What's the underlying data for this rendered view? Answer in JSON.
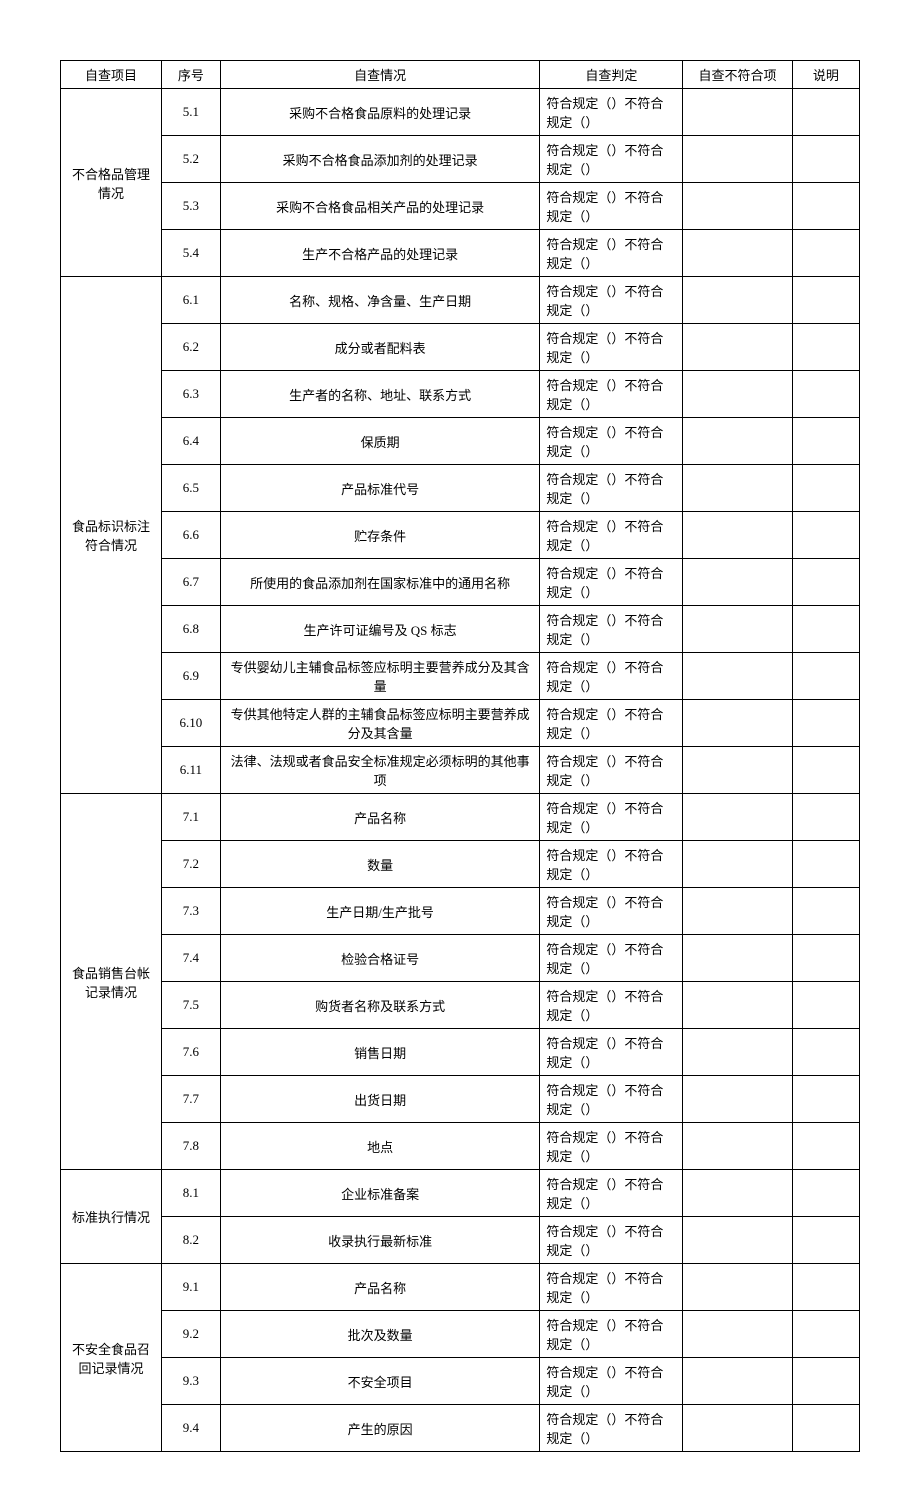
{
  "headers": {
    "project": "自查项目",
    "num": "序号",
    "desc": "自查情况",
    "judge": "自查判定",
    "nc": "自查不符合项",
    "note": "说明"
  },
  "judge_text": "符合规定（）不符合规定（）",
  "groups": [
    {
      "title": "不合格品管理情况",
      "rows": [
        {
          "num": "5.1",
          "desc": "采购不合格食品原料的处理记录"
        },
        {
          "num": "5.2",
          "desc": "采购不合格食品添加剂的处理记录"
        },
        {
          "num": "5.3",
          "desc": "采购不合格食品相关产品的处理记录"
        },
        {
          "num": "5.4",
          "desc": "生产不合格产品的处理记录"
        }
      ]
    },
    {
      "title": "食品标识标注符合情况",
      "rows": [
        {
          "num": "6.1",
          "desc": "名称、规格、净含量、生产日期"
        },
        {
          "num": "6.2",
          "desc": "成分或者配料表"
        },
        {
          "num": "6.3",
          "desc": "生产者的名称、地址、联系方式"
        },
        {
          "num": "6.4",
          "desc": "保质期"
        },
        {
          "num": "6.5",
          "desc": "产品标准代号"
        },
        {
          "num": "6.6",
          "desc": "贮存条件"
        },
        {
          "num": "6.7",
          "desc": "所使用的食品添加剂在国家标准中的通用名称"
        },
        {
          "num": "6.8",
          "desc": "生产许可证编号及 QS 标志"
        },
        {
          "num": "6.9",
          "desc": "专供婴幼儿主辅食品标签应标明主要营养成分及其含量"
        },
        {
          "num": "6.10",
          "desc": "专供其他特定人群的主辅食品标签应标明主要营养成分及其含量"
        },
        {
          "num": "6.11",
          "desc": "法律、法规或者食品安全标准规定必须标明的其他事项"
        }
      ]
    },
    {
      "title": "食品销售台帐记录情况",
      "rows": [
        {
          "num": "7.1",
          "desc": "产品名称"
        },
        {
          "num": "7.2",
          "desc": "数量"
        },
        {
          "num": "7.3",
          "desc": "生产日期/生产批号"
        },
        {
          "num": "7.4",
          "desc": "检验合格证号"
        },
        {
          "num": "7.5",
          "desc": "购货者名称及联系方式"
        },
        {
          "num": "7.6",
          "desc": "销售日期"
        },
        {
          "num": "7.7",
          "desc": "出货日期"
        },
        {
          "num": "7.8",
          "desc": "地点"
        }
      ]
    },
    {
      "title": "标准执行情况",
      "rows": [
        {
          "num": "8.1",
          "desc": "企业标准备案"
        },
        {
          "num": "8.2",
          "desc": "收录执行最新标准"
        }
      ]
    },
    {
      "title": "不安全食品召回记录情况",
      "rows": [
        {
          "num": "9.1",
          "desc": "产品名称"
        },
        {
          "num": "9.2",
          "desc": "批次及数量"
        },
        {
          "num": "9.3",
          "desc": "不安全项目"
        },
        {
          "num": "9.4",
          "desc": "产生的原因"
        }
      ]
    }
  ]
}
